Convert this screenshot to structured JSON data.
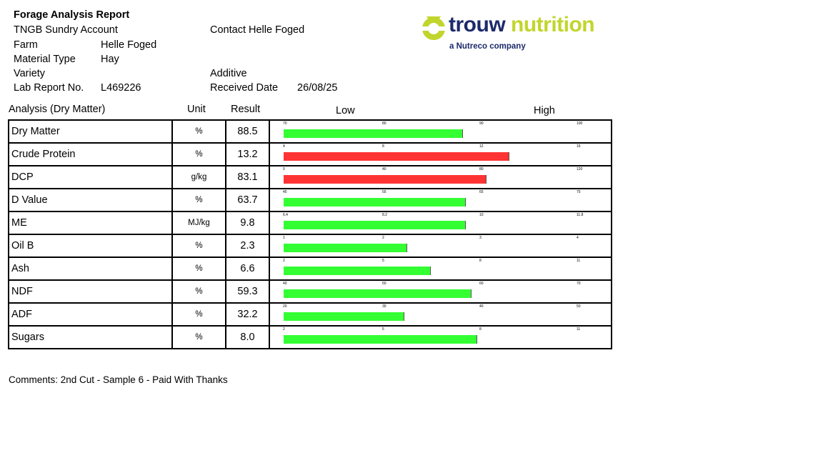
{
  "header": {
    "title": "Forage Analysis Report",
    "account": "TNGB Sundry Account",
    "contact": "Contact Helle Foged",
    "farm_label": "Farm",
    "farm_value": "Helle Foged",
    "material_label": "Material Type",
    "material_value": "Hay",
    "variety_label": "Variety",
    "additive_label": "Additive",
    "lab_label": "Lab Report No.",
    "lab_value": "L469226",
    "received_label": "Received Date",
    "received_value": "26/08/25"
  },
  "logo": {
    "word1": "trouw",
    "word2": "nutrition",
    "tagline": "a Nutreco company",
    "colors": {
      "navy": "#1c2a6b",
      "lime": "#c1d52c"
    }
  },
  "columns": {
    "analysis": "Analysis (Dry Matter)",
    "unit": "Unit",
    "result": "Result",
    "low": "Low",
    "high": "High"
  },
  "colors": {
    "green": "#33ff33",
    "red": "#ff3333"
  },
  "rows": [
    {
      "name": "Dry Matter",
      "unit": "%",
      "result": "88.5",
      "ticks": [
        "70",
        "80",
        "90",
        "100"
      ],
      "level": 0.61,
      "color": "green"
    },
    {
      "name": "Crude Protein",
      "unit": "%",
      "result": "13.2",
      "ticks": [
        "4",
        "8",
        "12",
        "16"
      ],
      "level": 0.77,
      "color": "red"
    },
    {
      "name": "DCP",
      "unit": "g/kg",
      "result": "83.1",
      "ticks": [
        "0",
        "40",
        "80",
        "120"
      ],
      "level": 0.69,
      "color": "red"
    },
    {
      "name": "D Value",
      "unit": "%",
      "result": "63.7",
      "ticks": [
        "45",
        "55",
        "65",
        "75"
      ],
      "level": 0.62,
      "color": "green"
    },
    {
      "name": "ME",
      "unit": "MJ/kg",
      "result": "9.8",
      "ticks": [
        "6.4",
        "8.2",
        "10",
        "11.8"
      ],
      "level": 0.62,
      "color": "green"
    },
    {
      "name": "Oil B",
      "unit": "%",
      "result": "2.3",
      "ticks": [
        "1",
        "2",
        "3",
        "4"
      ],
      "level": 0.42,
      "color": "green"
    },
    {
      "name": "Ash",
      "unit": "%",
      "result": "6.6",
      "ticks": [
        "2",
        "5",
        "8",
        "11"
      ],
      "level": 0.5,
      "color": "green"
    },
    {
      "name": "NDF",
      "unit": "%",
      "result": "59.3",
      "ticks": [
        "40",
        "50",
        "60",
        "70"
      ],
      "level": 0.64,
      "color": "green"
    },
    {
      "name": "ADF",
      "unit": "%",
      "result": "32.2",
      "ticks": [
        "20",
        "30",
        "40",
        "50"
      ],
      "level": 0.41,
      "color": "green"
    },
    {
      "name": "Sugars",
      "unit": "%",
      "result": "8.0",
      "ticks": [
        "2",
        "5",
        "8",
        "11"
      ],
      "level": 0.66,
      "color": "green"
    }
  ],
  "comments": "Comments: 2nd Cut - Sample 6 - Paid With Thanks"
}
